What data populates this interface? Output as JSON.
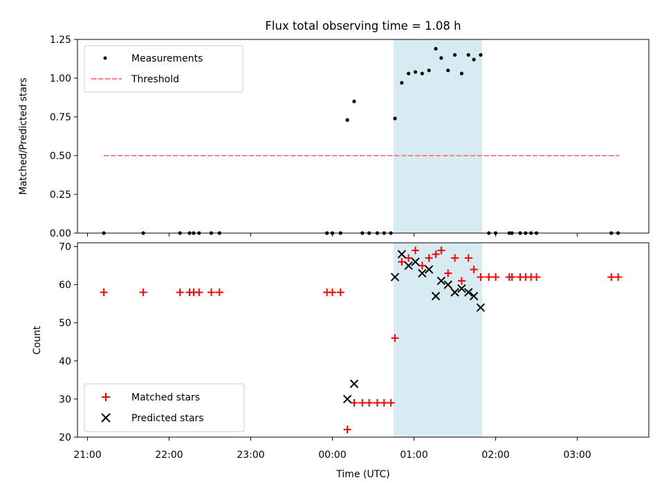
{
  "title": "Flux total observing time = 1.08 h",
  "chart_data": [
    {
      "type": "scatter",
      "ylabel": "Matched/Predicted stars",
      "ylim": [
        0,
        1.25
      ],
      "yticks": [
        0,
        0.25,
        0.5,
        0.75,
        1.0,
        1.25
      ],
      "ytick_labels": [
        "0.00",
        "0.25",
        "0.50",
        "0.75",
        "1.00",
        "1.25"
      ],
      "highlight_span": [
        "00:45",
        "01:50"
      ],
      "highlight_color": "#add8e6",
      "grid": false,
      "legend": "top-left",
      "series": [
        {
          "name": "Measurements",
          "marker": "dot",
          "color": "#000000",
          "points": [
            [
              "21:12",
              0
            ],
            [
              "21:41",
              0
            ],
            [
              "22:08",
              0
            ],
            [
              "22:15",
              0
            ],
            [
              "22:18",
              0
            ],
            [
              "22:22",
              0
            ],
            [
              "22:31",
              0
            ],
            [
              "22:37",
              0
            ],
            [
              "23:56",
              0
            ],
            [
              "00:00",
              0
            ],
            [
              "00:06",
              0
            ],
            [
              "00:11",
              0.73
            ],
            [
              "00:16",
              0.85
            ],
            [
              "00:22",
              0
            ],
            [
              "00:27",
              0
            ],
            [
              "00:33",
              0
            ],
            [
              "00:38",
              0
            ],
            [
              "00:43",
              0
            ],
            [
              "00:46",
              0.74
            ],
            [
              "00:51",
              0.97
            ],
            [
              "00:56",
              1.03
            ],
            [
              "01:01",
              1.04
            ],
            [
              "01:06",
              1.03
            ],
            [
              "01:11",
              1.05
            ],
            [
              "01:16",
              1.19
            ],
            [
              "01:20",
              1.13
            ],
            [
              "01:25",
              1.05
            ],
            [
              "01:30",
              1.15
            ],
            [
              "01:35",
              1.03
            ],
            [
              "01:40",
              1.15
            ],
            [
              "01:44",
              1.12
            ],
            [
              "01:49",
              1.15
            ],
            [
              "01:55",
              0
            ],
            [
              "02:00",
              0
            ],
            [
              "02:10",
              0
            ],
            [
              "02:12",
              0
            ],
            [
              "02:18",
              0
            ],
            [
              "02:22",
              0
            ],
            [
              "02:26",
              0
            ],
            [
              "02:30",
              0
            ],
            [
              "03:25",
              0
            ],
            [
              "03:30",
              0
            ]
          ]
        },
        {
          "name": "Threshold",
          "line": "dashed",
          "color": "#ff7f7f",
          "points": [
            [
              "21:12",
              0.5
            ],
            [
              "03:31",
              0.5
            ]
          ]
        }
      ]
    },
    {
      "type": "scatter",
      "xlabel": "Time (UTC)",
      "ylabel": "Count",
      "ylim": [
        20,
        71
      ],
      "yticks": [
        20,
        30,
        40,
        50,
        60,
        70
      ],
      "ytick_labels": [
        "20",
        "30",
        "40",
        "50",
        "60",
        "70"
      ],
      "xticks": [
        "21:00",
        "22:00",
        "23:00",
        "00:00",
        "01:00",
        "02:00",
        "03:00"
      ],
      "highlight_span": [
        "00:45",
        "01:50"
      ],
      "highlight_color": "#add8e6",
      "grid": false,
      "legend": "bottom-left",
      "series": [
        {
          "name": "Matched stars",
          "marker": "plus",
          "color": "#ff0000",
          "points": [
            [
              "21:12",
              58
            ],
            [
              "21:41",
              58
            ],
            [
              "22:08",
              58
            ],
            [
              "22:15",
              58
            ],
            [
              "22:18",
              58
            ],
            [
              "22:22",
              58
            ],
            [
              "22:31",
              58
            ],
            [
              "22:37",
              58
            ],
            [
              "23:56",
              58
            ],
            [
              "00:00",
              58
            ],
            [
              "00:06",
              58
            ],
            [
              "00:11",
              22
            ],
            [
              "00:16",
              29
            ],
            [
              "00:22",
              29
            ],
            [
              "00:27",
              29
            ],
            [
              "00:33",
              29
            ],
            [
              "00:38",
              29
            ],
            [
              "00:43",
              29
            ],
            [
              "00:46",
              46
            ],
            [
              "00:51",
              66
            ],
            [
              "00:56",
              67
            ],
            [
              "01:01",
              69
            ],
            [
              "01:06",
              65
            ],
            [
              "01:11",
              67
            ],
            [
              "01:16",
              68
            ],
            [
              "01:20",
              69
            ],
            [
              "01:25",
              63
            ],
            [
              "01:30",
              67
            ],
            [
              "01:35",
              61
            ],
            [
              "01:40",
              67
            ],
            [
              "01:44",
              64
            ],
            [
              "01:49",
              62
            ],
            [
              "01:55",
              62
            ],
            [
              "02:00",
              62
            ],
            [
              "02:10",
              62
            ],
            [
              "02:12",
              62
            ],
            [
              "02:18",
              62
            ],
            [
              "02:22",
              62
            ],
            [
              "02:26",
              62
            ],
            [
              "02:30",
              62
            ],
            [
              "03:25",
              62
            ],
            [
              "03:30",
              62
            ]
          ]
        },
        {
          "name": "Predicted stars",
          "marker": "x",
          "color": "#000000",
          "points": [
            [
              "00:11",
              30
            ],
            [
              "00:16",
              34
            ],
            [
              "00:46",
              62
            ],
            [
              "00:51",
              68
            ],
            [
              "00:56",
              65
            ],
            [
              "01:01",
              66
            ],
            [
              "01:06",
              63
            ],
            [
              "01:11",
              64
            ],
            [
              "01:16",
              57
            ],
            [
              "01:20",
              61
            ],
            [
              "01:25",
              60
            ],
            [
              "01:30",
              58
            ],
            [
              "01:35",
              59
            ],
            [
              "01:40",
              58
            ],
            [
              "01:44",
              57
            ],
            [
              "01:49",
              54
            ]
          ]
        }
      ]
    }
  ]
}
